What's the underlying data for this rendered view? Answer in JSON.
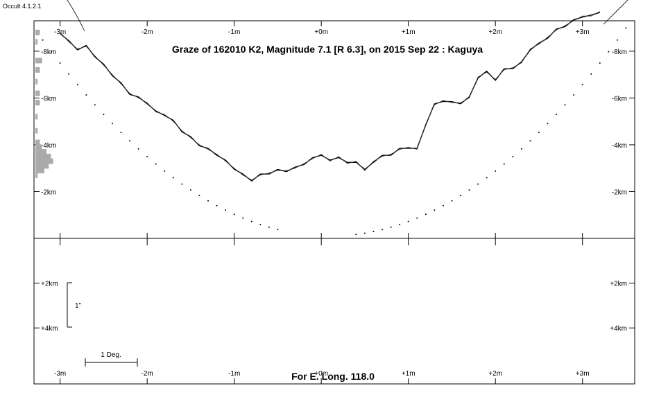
{
  "app": {
    "version": "Occult 4.1.2.1"
  },
  "chart_data": {
    "type": "line",
    "title": "Graze of  162010 K2,  Magnitude 7.1 [R 6.3],  on 2015 Sep 22  :  Kaguya",
    "footer": "For E. Long. 118.0",
    "x_ticks": [
      "-3m",
      "-2m",
      "-1m",
      "+0m",
      "+1m",
      "+2m",
      "+3m"
    ],
    "upper_y_ticks": [
      "-8km",
      "-6km",
      "-4km",
      "-2km"
    ],
    "lower_y_ticks": [
      "+2km",
      "+4km"
    ],
    "scale_bar_vertical": "1\"",
    "scale_bar_horizontal": "1 Deg.",
    "xlim": [
      -3.3,
      3.6
    ],
    "ylim_upper_km": [
      -9.3,
      0.0
    ],
    "ylim_lower_km": [
      0.0,
      6.5
    ],
    "series": [
      {
        "x": [
          -3.0,
          -2.9,
          -2.8,
          -2.7,
          -2.6,
          -2.5,
          -2.4,
          -2.3,
          -2.2,
          -2.1,
          -2.0,
          -1.9,
          -1.8,
          -1.7,
          -1.6,
          -1.5,
          -1.4,
          -1.3,
          -1.2,
          -1.1,
          -1.0,
          -0.9,
          -0.8,
          -0.7,
          -0.6,
          -0.5,
          -0.4,
          -0.3,
          -0.2,
          -0.1,
          0.0,
          0.1,
          0.2,
          0.3,
          0.4,
          0.5,
          0.6,
          0.7,
          0.8,
          0.9,
          1.0,
          1.1,
          1.2,
          1.3,
          1.4,
          1.5,
          1.6,
          1.7,
          1.8,
          1.9,
          2.0,
          2.1,
          2.2,
          2.3,
          2.4,
          2.5,
          2.6,
          2.7,
          2.8,
          2.9,
          3.0,
          3.1,
          3.2
        ],
        "y": [
          -8.8,
          -8.4,
          -8.1,
          -8.2,
          -7.8,
          -7.4,
          -7.0,
          -6.6,
          -6.2,
          -6.0,
          -5.8,
          -5.4,
          -5.3,
          -5.0,
          -4.6,
          -4.3,
          -4.0,
          -3.8,
          -3.6,
          -3.3,
          -3.0,
          -2.7,
          -2.5,
          -2.7,
          -2.8,
          -2.9,
          -2.9,
          -3.0,
          -3.2,
          -3.4,
          -3.6,
          -3.3,
          -3.5,
          -3.2,
          -3.3,
          -2.9,
          -3.3,
          -3.5,
          -3.6,
          -3.8,
          -3.9,
          -3.8,
          -4.9,
          -5.7,
          -5.9,
          -5.8,
          -5.8,
          -6.0,
          -6.9,
          -7.1,
          -6.8,
          -7.2,
          -7.3,
          -7.5,
          -8.1,
          -8.3,
          -8.6,
          -8.9,
          -9.1,
          -9.3,
          -9.5,
          -9.5,
          -9.7
        ]
      }
    ],
    "limb_dots_x": [
      -3.2,
      -3.1,
      -3.0,
      -2.9,
      -2.8,
      -2.7,
      -2.6,
      -2.5,
      -2.4,
      -2.3,
      -2.2,
      -2.1,
      -2.0,
      -1.9,
      -1.8,
      -1.7,
      -1.6,
      -1.5,
      -1.4,
      -1.3,
      -1.2,
      -1.1,
      -1.0,
      -0.9,
      -0.8,
      -0.7,
      -0.6,
      -0.5,
      0.4,
      0.5,
      0.6,
      0.7,
      0.8,
      0.9,
      1.0,
      1.1,
      1.2,
      1.3,
      1.4,
      1.5,
      1.6,
      1.7,
      1.8,
      1.9,
      2.0,
      2.1,
      2.2,
      2.3,
      2.4,
      2.5,
      2.6,
      2.7,
      2.8,
      2.9,
      3.0,
      3.1,
      3.2,
      3.3,
      3.4,
      3.5
    ],
    "histogram_km": [
      -8.8,
      -8.4,
      -7.6,
      -7.2,
      -6.7,
      -6.2,
      -5.8,
      -5.2,
      -4.6,
      -4.1,
      -3.9,
      -3.7,
      -3.5,
      -3.3,
      -3.1,
      -2.9,
      -2.7
    ],
    "histogram_counts": [
      2,
      1,
      3,
      2,
      1,
      2,
      2,
      1,
      1,
      2,
      3,
      5,
      7,
      8,
      6,
      4,
      1
    ],
    "grid": false
  }
}
